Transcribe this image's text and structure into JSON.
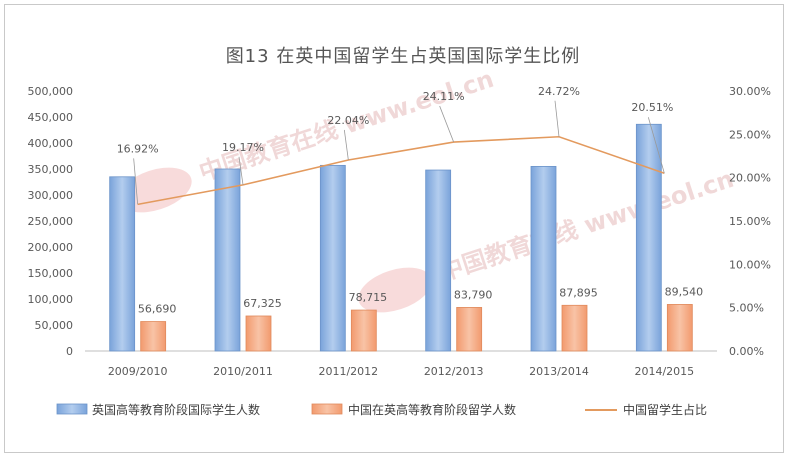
{
  "chart_data": {
    "type": "bar",
    "title": "图13 在英中国留学生占英国国际学生比例",
    "categories": [
      "2009/2010",
      "2010/2011",
      "2011/2012",
      "2012/2013",
      "2013/2014",
      "2014/2015"
    ],
    "series": [
      {
        "name": "英国高等教育阶段国际学生人数",
        "type": "bar",
        "axis": "left",
        "color": "#7ea6dc",
        "values": [
          335000,
          350000,
          357000,
          348000,
          355000,
          436000
        ]
      },
      {
        "name": "中国在英高等教育阶段留学人数",
        "type": "bar",
        "axis": "left",
        "color": "#f4a57e",
        "values": [
          56690,
          67325,
          78715,
          83790,
          87895,
          89540
        ],
        "data_labels": [
          "56,690",
          "67,325",
          "78,715",
          "83,790",
          "87,895",
          "89,540"
        ]
      },
      {
        "name": "中国留学生占比",
        "type": "line",
        "axis": "right",
        "color": "#e39a5e",
        "values": [
          16.92,
          19.17,
          22.04,
          24.11,
          24.72,
          20.51
        ],
        "data_labels": [
          "16.92%",
          "19.17%",
          "22.04%",
          "24.11%",
          "24.72%",
          "20.51%"
        ]
      }
    ],
    "y_left": {
      "min": 0,
      "max": 500000,
      "step": 50000,
      "tick_labels": [
        "0",
        "50,000",
        "100,000",
        "150,000",
        "200,000",
        "250,000",
        "300,000",
        "350,000",
        "400,000",
        "450,000",
        "500,000"
      ]
    },
    "y_right": {
      "min": 0,
      "max": 30,
      "step": 5,
      "tick_labels": [
        "0.00%",
        "5.00%",
        "10.00%",
        "15.00%",
        "20.00%",
        "25.00%",
        "30.00%"
      ]
    },
    "grid": false,
    "legend_position": "bottom",
    "watermark": "中国教育在线 www.eol.cn"
  }
}
